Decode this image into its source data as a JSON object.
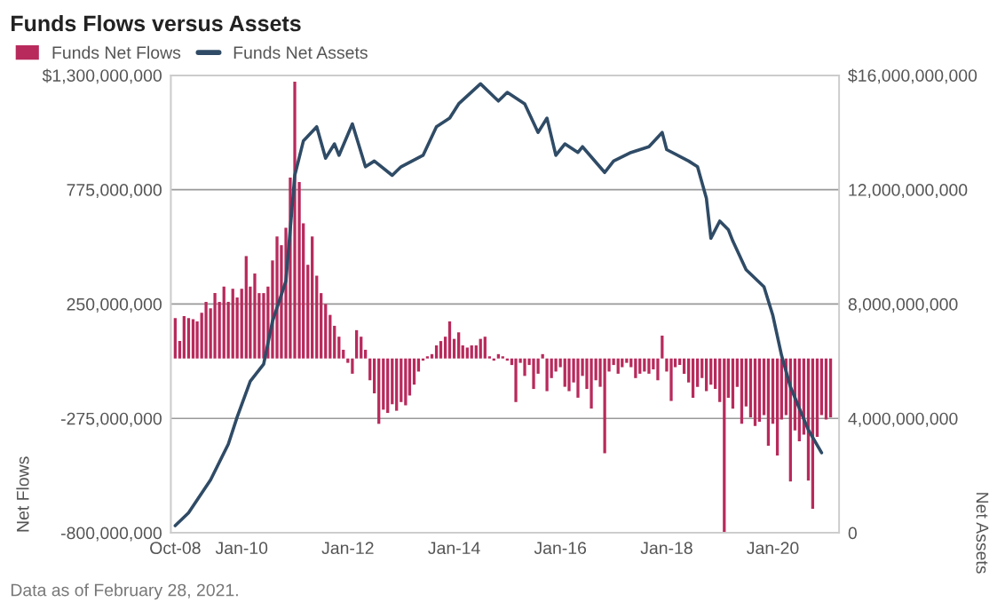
{
  "chart_data": {
    "type": "bar",
    "title": "Funds Flows versus Assets",
    "x": [
      "2008-10",
      "2008-11",
      "2008-12",
      "2009-01",
      "2009-02",
      "2009-03",
      "2009-04",
      "2009-05",
      "2009-06",
      "2009-07",
      "2009-08",
      "2009-09",
      "2009-10",
      "2009-11",
      "2009-12",
      "2010-01",
      "2010-02",
      "2010-03",
      "2010-04",
      "2010-05",
      "2010-06",
      "2010-07",
      "2010-08",
      "2010-09",
      "2010-10",
      "2010-11",
      "2010-12",
      "2011-01",
      "2011-02",
      "2011-03",
      "2011-04",
      "2011-05",
      "2011-06",
      "2011-07",
      "2011-08",
      "2011-09",
      "2011-10",
      "2011-11",
      "2011-12",
      "2012-01",
      "2012-02",
      "2012-03",
      "2012-04",
      "2012-05",
      "2012-06",
      "2012-07",
      "2012-08",
      "2012-09",
      "2012-10",
      "2012-11",
      "2012-12",
      "2013-01",
      "2013-02",
      "2013-03",
      "2013-04",
      "2013-05",
      "2013-06",
      "2013-07",
      "2013-08",
      "2013-09",
      "2013-10",
      "2013-11",
      "2013-12",
      "2014-01",
      "2014-02",
      "2014-03",
      "2014-04",
      "2014-05",
      "2014-06",
      "2014-07",
      "2014-08",
      "2014-09",
      "2014-10",
      "2014-11",
      "2014-12",
      "2015-01",
      "2015-02",
      "2015-03",
      "2015-04",
      "2015-05",
      "2015-06",
      "2015-07",
      "2015-08",
      "2015-09",
      "2015-10",
      "2015-11",
      "2015-12",
      "2016-01",
      "2016-02",
      "2016-03",
      "2016-04",
      "2016-05",
      "2016-06",
      "2016-07",
      "2016-08",
      "2016-09",
      "2016-10",
      "2016-11",
      "2016-12",
      "2017-01",
      "2017-02",
      "2017-03",
      "2017-04",
      "2017-05",
      "2017-06",
      "2017-07",
      "2017-08",
      "2017-09",
      "2017-10",
      "2017-11",
      "2017-12",
      "2018-01",
      "2018-02",
      "2018-03",
      "2018-04",
      "2018-05",
      "2018-06",
      "2018-07",
      "2018-08",
      "2018-09",
      "2018-10",
      "2018-11",
      "2018-12",
      "2019-01",
      "2019-02",
      "2019-03",
      "2019-04",
      "2019-05",
      "2019-06",
      "2019-07",
      "2019-08",
      "2019-09",
      "2019-10",
      "2019-11",
      "2019-12",
      "2020-01",
      "2020-02",
      "2020-03",
      "2020-04",
      "2020-05",
      "2020-06",
      "2020-07",
      "2020-08",
      "2020-09",
      "2020-10",
      "2020-11",
      "2020-12",
      "2021-01",
      "2021-02"
    ],
    "series": [
      {
        "name": "Funds Net Flows",
        "color": "#b82a5c",
        "values": [
          185000000.0,
          80000000.0,
          195000000.0,
          185000000.0,
          180000000.0,
          170000000.0,
          210000000.0,
          260000000.0,
          230000000.0,
          300000000.0,
          260000000.0,
          330000000.0,
          260000000.0,
          320000000.0,
          280000000.0,
          320000000.0,
          470000000.0,
          330000000.0,
          390000000.0,
          300000000.0,
          300000000.0,
          330000000.0,
          450000000.0,
          560000000.0,
          520000000.0,
          600000000.0,
          830000000.0,
          1270000000.0,
          810000000.0,
          620000000.0,
          430000000.0,
          560000000.0,
          380000000.0,
          300000000.0,
          250000000.0,
          200000000.0,
          150000000.0,
          100000000.0,
          40000000.0,
          -20000000.0,
          -70000000.0,
          130000000.0,
          100000000.0,
          40000000.0,
          -100000000.0,
          -160000000.0,
          -300000000.0,
          -235000000.0,
          -250000000.0,
          -210000000.0,
          -240000000.0,
          -200000000.0,
          -215000000.0,
          -170000000.0,
          -120000000.0,
          -60000000.0,
          -10000000.0,
          10000000.0,
          20000000.0,
          60000000.0,
          80000000.0,
          100000000.0,
          170000000.0,
          90000000.0,
          120000000.0,
          60000000.0,
          50000000.0,
          60000000.0,
          60000000.0,
          90000000.0,
          100000000.0,
          10000000.0,
          -10000000.0,
          20000000.0,
          10000000.0,
          -10000000.0,
          -30000000.0,
          -200000000.0,
          -20000000.0,
          -80000000.0,
          -30000000.0,
          -140000000.0,
          -70000000.0,
          20000000.0,
          -150000000.0,
          -90000000.0,
          -60000000.0,
          -40000000.0,
          -130000000.0,
          -150000000.0,
          -110000000.0,
          -180000000.0,
          -80000000.0,
          -140000000.0,
          -230000000.0,
          -100000000.0,
          -130000000.0,
          -435000000.0,
          -60000000.0,
          -30000000.0,
          -70000000.0,
          -40000000.0,
          -20000000.0,
          -40000000.0,
          -90000000.0,
          -70000000.0,
          -60000000.0,
          -70000000.0,
          -50000000.0,
          -100000000.0,
          105000000.0,
          -60000000.0,
          -195000000.0,
          -40000000.0,
          -30000000.0,
          -70000000.0,
          -110000000.0,
          -180000000.0,
          -130000000.0,
          -90000000.0,
          -150000000.0,
          -120000000.0,
          -140000000.0,
          -200000000.0,
          -800000000.0,
          -180000000.0,
          -230000000.0,
          -130000000.0,
          -300000000.0,
          -220000000.0,
          -270000000.0,
          -310000000.0,
          -290000000.0,
          -260000000.0,
          -400000000.0,
          -300000000.0,
          -445000000.0,
          -280000000.0,
          -260000000.0,
          -565000000.0,
          -330000000.0,
          -380000000.0,
          -350000000.0,
          -560000000.0,
          -690000000.0,
          -360000000.0,
          -260000000.0,
          -280000000.0,
          -270000000.0
        ]
      },
      {
        "name": "Funds Net Assets",
        "type": "line",
        "axis": "y2",
        "color": "#2f4b66",
        "x": [
          "2008-10",
          "2009-01",
          "2009-06",
          "2009-10",
          "2009-12",
          "2010-03",
          "2010-06",
          "2010-08",
          "2010-11",
          "2011-01",
          "2011-03",
          "2011-06",
          "2011-08",
          "2011-10",
          "2011-11",
          "2012-02",
          "2012-05",
          "2012-07",
          "2012-11",
          "2013-01",
          "2013-06",
          "2013-09",
          "2013-12",
          "2014-02",
          "2014-07",
          "2014-11",
          "2015-01",
          "2015-05",
          "2015-08",
          "2015-10",
          "2015-12",
          "2016-02",
          "2016-05",
          "2016-06",
          "2016-11",
          "2017-01",
          "2017-05",
          "2017-09",
          "2017-12",
          "2018-01",
          "2018-06",
          "2018-08",
          "2018-10",
          "2018-11",
          "2019-01",
          "2019-03",
          "2019-04",
          "2019-07",
          "2019-11",
          "2020-01",
          "2020-03",
          "2020-05",
          "2020-09",
          "2020-12"
        ],
        "values": [
          250000000.0,
          700000000.0,
          1850000000.0,
          3100000000.0,
          4050000000.0,
          5300000000.0,
          5900000000.0,
          7400000000.0,
          8800000000.0,
          12500000000.0,
          13700000000.0,
          14200000000.0,
          13100000000.0,
          13600000000.0,
          13200000000.0,
          14300000000.0,
          12800000000.0,
          13000000000.0,
          12500000000.0,
          12800000000.0,
          13200000000.0,
          14200000000.0,
          14500000000.0,
          15000000000.0,
          15700000000.0,
          15100000000.0,
          15400000000.0,
          15000000000.0,
          14000000000.0,
          14500000000.0,
          13200000000.0,
          13600000000.0,
          13300000000.0,
          13500000000.0,
          12600000000.0,
          13000000000.0,
          13300000000.0,
          13500000000.0,
          14000000000.0,
          13400000000.0,
          13000000000.0,
          12800000000.0,
          11700000000.0,
          10300000000.0,
          10900000000.0,
          10600000000.0,
          10200000000.0,
          9200000000.0,
          8600000000.0,
          7600000000.0,
          6200000000.0,
          5100000000.0,
          3600000000.0,
          2800000000.0
        ]
      }
    ],
    "xlim": [
      "2008-09",
      "2021-04"
    ],
    "xticks": [
      {
        "value": "2008-10",
        "label": "Oct-08"
      },
      {
        "value": "2010-01",
        "label": "Jan-10"
      },
      {
        "value": "2012-01",
        "label": "Jan-12"
      },
      {
        "value": "2014-01",
        "label": "Jan-14"
      },
      {
        "value": "2016-01",
        "label": "Jan-16"
      },
      {
        "value": "2018-01",
        "label": "Jan-18"
      },
      {
        "value": "2020-01",
        "label": "Jan-20"
      }
    ],
    "ylim": [
      -800000000.0,
      1300000000.0
    ],
    "yticks": [
      {
        "value": -800000000.0,
        "label": "-800,000,000"
      },
      {
        "value": -275000000.0,
        "label": "-275,000,000"
      },
      {
        "value": 250000000.0,
        "label": "250,000,000"
      },
      {
        "value": 775000000.0,
        "label": "775,000,000"
      },
      {
        "value": 1300000000.0,
        "label": "$1,300,000,000"
      }
    ],
    "y2lim": [
      0,
      16000000000.0
    ],
    "y2ticks": [
      {
        "value": 0,
        "label": "0"
      },
      {
        "value": 4000000000.0,
        "label": "4,000,000,000"
      },
      {
        "value": 8000000000.0,
        "label": "8,000,000,000"
      },
      {
        "value": 12000000000.0,
        "label": "12,000,000,000"
      },
      {
        "value": 16000000000.0,
        "label": "$16,000,000,000"
      }
    ],
    "ylabel": "Net Flows",
    "y2label": "Net Assets",
    "annotations": [
      "Data as of February 28, 2021."
    ],
    "grid": "y",
    "legend": "top left"
  }
}
